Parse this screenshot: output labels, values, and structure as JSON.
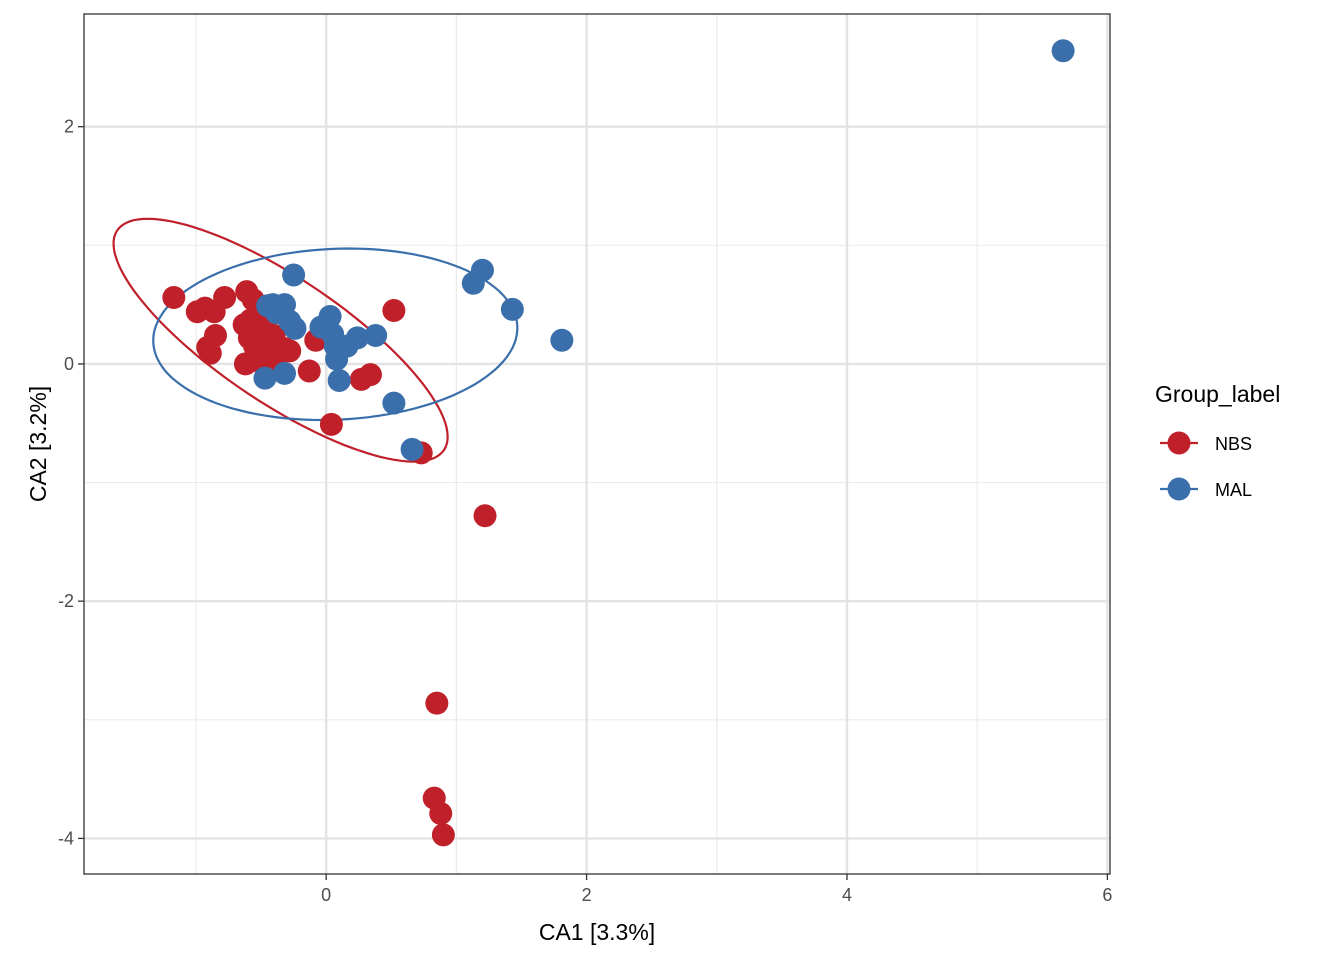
{
  "chart_data": {
    "type": "scatter",
    "xlabel": "CA1   [3.3%]",
    "ylabel": "CA2   [3.2%]",
    "xlim": [
      -1.86,
      6.02
    ],
    "ylim": [
      -4.3,
      2.95
    ],
    "x_ticks": [
      0,
      2,
      4,
      6
    ],
    "y_ticks": [
      -4,
      -2,
      0,
      2
    ],
    "x_tick_labels": [
      "0",
      "2",
      "4",
      "6"
    ],
    "y_tick_labels": [
      "-4",
      "-2",
      "0",
      "2"
    ],
    "grid": true,
    "legend": {
      "title": "Group_label",
      "placement": "right"
    },
    "series": [
      {
        "name": "NBS",
        "color": "#c0202a",
        "points": [
          [
            -1.17,
            0.56
          ],
          [
            -0.99,
            0.44
          ],
          [
            -0.93,
            0.47
          ],
          [
            -0.86,
            0.44
          ],
          [
            -0.78,
            0.56
          ],
          [
            -0.91,
            0.14
          ],
          [
            -0.89,
            0.09
          ],
          [
            -0.85,
            0.24
          ],
          [
            -0.61,
            0.61
          ],
          [
            -0.56,
            0.54
          ],
          [
            -0.63,
            0.33
          ],
          [
            -0.58,
            0.37
          ],
          [
            -0.52,
            0.44
          ],
          [
            -0.47,
            0.3
          ],
          [
            -0.59,
            0.22
          ],
          [
            -0.55,
            0.15
          ],
          [
            -0.5,
            0.09
          ],
          [
            -0.45,
            0.16
          ],
          [
            -0.4,
            0.24
          ],
          [
            -0.62,
            0.0
          ],
          [
            -0.55,
            0.03
          ],
          [
            -0.45,
            0.02
          ],
          [
            -0.38,
            0.05
          ],
          [
            -0.32,
            0.13
          ],
          [
            -0.28,
            0.11
          ],
          [
            -0.13,
            -0.06
          ],
          [
            -0.08,
            0.2
          ],
          [
            0.04,
            -0.51
          ],
          [
            0.27,
            -0.13
          ],
          [
            0.34,
            -0.09
          ],
          [
            0.52,
            0.45
          ],
          [
            0.73,
            -0.75
          ],
          [
            1.22,
            -1.28
          ],
          [
            0.85,
            -2.86
          ],
          [
            0.83,
            -3.66
          ],
          [
            0.88,
            -3.79
          ],
          [
            0.9,
            -3.97
          ]
        ],
        "ellipse": {
          "center": [
            -0.35,
            0.2
          ],
          "semi_major": 1.56,
          "semi_minor": 0.51,
          "angle_deg": -37
        }
      },
      {
        "name": "MAL",
        "color": "#3a6fab",
        "points": [
          [
            -0.25,
            0.75
          ],
          [
            -0.45,
            0.49
          ],
          [
            -0.41,
            0.5
          ],
          [
            -0.32,
            0.5
          ],
          [
            -0.38,
            0.43
          ],
          [
            -0.28,
            0.36
          ],
          [
            -0.24,
            0.3
          ],
          [
            -0.04,
            0.31
          ],
          [
            0.03,
            0.4
          ],
          [
            0.05,
            0.25
          ],
          [
            0.07,
            0.15
          ],
          [
            0.08,
            0.04
          ],
          [
            0.16,
            0.15
          ],
          [
            0.24,
            0.22
          ],
          [
            0.38,
            0.24
          ],
          [
            0.1,
            -0.14
          ],
          [
            -0.47,
            -0.12
          ],
          [
            -0.32,
            -0.08
          ],
          [
            0.52,
            -0.33
          ],
          [
            0.66,
            -0.72
          ],
          [
            1.13,
            0.68
          ],
          [
            1.2,
            0.79
          ],
          [
            1.43,
            0.46
          ],
          [
            1.81,
            0.2
          ],
          [
            5.66,
            2.64
          ]
        ],
        "ellipse": {
          "center": [
            0.07,
            0.25
          ],
          "semi_major": 1.4,
          "semi_minor": 0.72,
          "angle_deg": 3
        }
      }
    ]
  }
}
